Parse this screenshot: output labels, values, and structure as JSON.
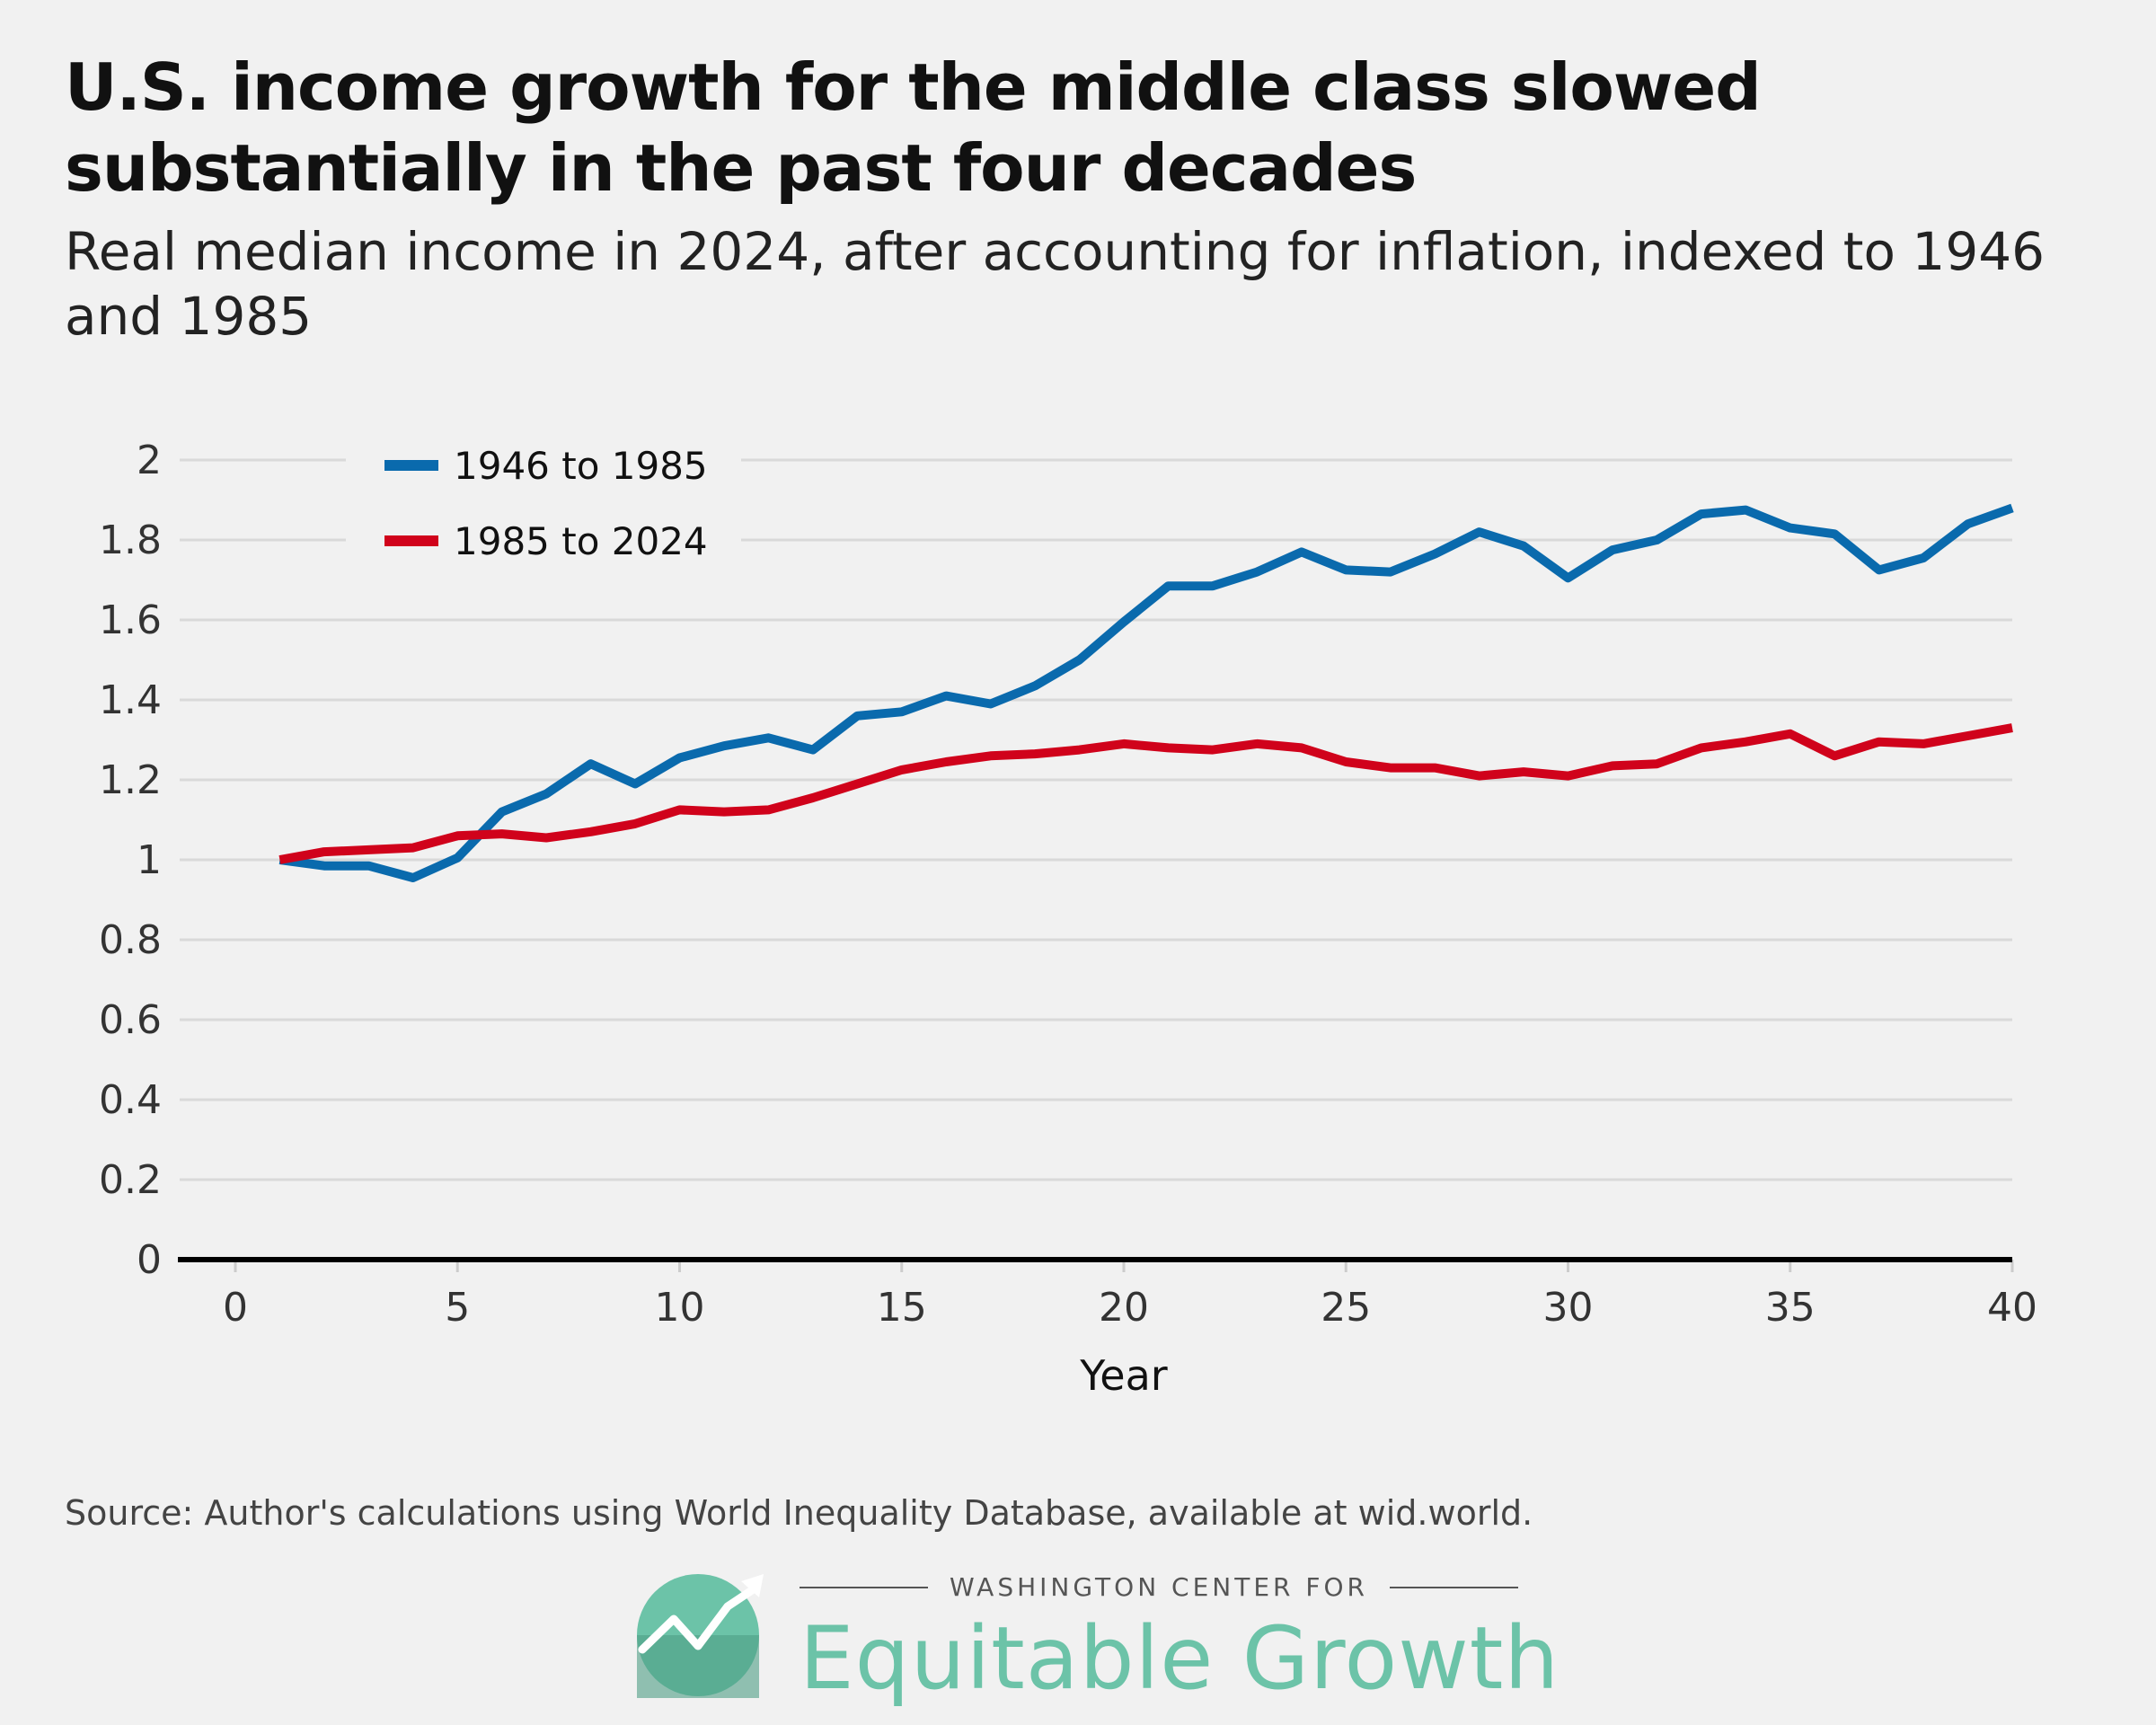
{
  "title": "U.S. income growth for the middle class slowed substantially in the past four decades",
  "subtitle": "Real median income in 2024, after accounting for inflation, indexed to 1946 and 1985",
  "source": "Source: Author's calculations using World Inequality Database, available at wid.world.",
  "logo": {
    "top_text": "WASHINGTON CENTER FOR",
    "name": "Equitable Growth",
    "color": "#6cc3a8"
  },
  "chart_data": {
    "type": "line",
    "xlabel": "Year",
    "ylabel": "",
    "xlim": [
      0,
      40
    ],
    "ylim": [
      0,
      2
    ],
    "xticks": [
      0,
      5,
      10,
      15,
      20,
      25,
      30,
      35,
      40
    ],
    "yticks": [
      0,
      0.2,
      0.4,
      0.6,
      0.8,
      1,
      1.2,
      1.4,
      1.6,
      1.8,
      2
    ],
    "ytick_labels": [
      "0",
      "0.2",
      "0.4",
      "0.6",
      "0.8",
      "1",
      "1.2",
      "1.4",
      "1.6",
      "1.8",
      "2"
    ],
    "grid": true,
    "legend_position": "top-left",
    "x": [
      1,
      2,
      3,
      4,
      5,
      6,
      7,
      8,
      9,
      10,
      11,
      12,
      13,
      14,
      15,
      16,
      17,
      18,
      19,
      20,
      21,
      22,
      23,
      24,
      25,
      26,
      27,
      28,
      29,
      30,
      31,
      32,
      33,
      34,
      35,
      36,
      37,
      38,
      39,
      40
    ],
    "series": [
      {
        "name": "1946 to 1985",
        "color": "#0a6aad",
        "values": [
          1.0,
          0.985,
          0.985,
          0.955,
          1.005,
          1.12,
          1.165,
          1.24,
          1.19,
          1.255,
          1.285,
          1.305,
          1.275,
          1.36,
          1.37,
          1.41,
          1.39,
          1.435,
          1.5,
          1.595,
          1.685,
          1.685,
          1.72,
          1.77,
          1.725,
          1.72,
          1.765,
          1.82,
          1.785,
          1.705,
          1.775,
          1.8,
          1.865,
          1.875,
          1.83,
          1.815,
          1.725,
          1.755,
          1.84,
          1.88
        ]
      },
      {
        "name": "1985 to 2024",
        "color": "#d0021b",
        "values": [
          1.0,
          1.02,
          1.025,
          1.03,
          1.06,
          1.065,
          1.055,
          1.07,
          1.09,
          1.125,
          1.12,
          1.125,
          1.155,
          1.19,
          1.225,
          1.245,
          1.26,
          1.265,
          1.275,
          1.29,
          1.28,
          1.275,
          1.29,
          1.28,
          1.245,
          1.23,
          1.23,
          1.21,
          1.22,
          1.21,
          1.235,
          1.24,
          1.28,
          1.295,
          1.315,
          1.26,
          1.295,
          1.29,
          1.31,
          1.33
        ]
      }
    ]
  }
}
